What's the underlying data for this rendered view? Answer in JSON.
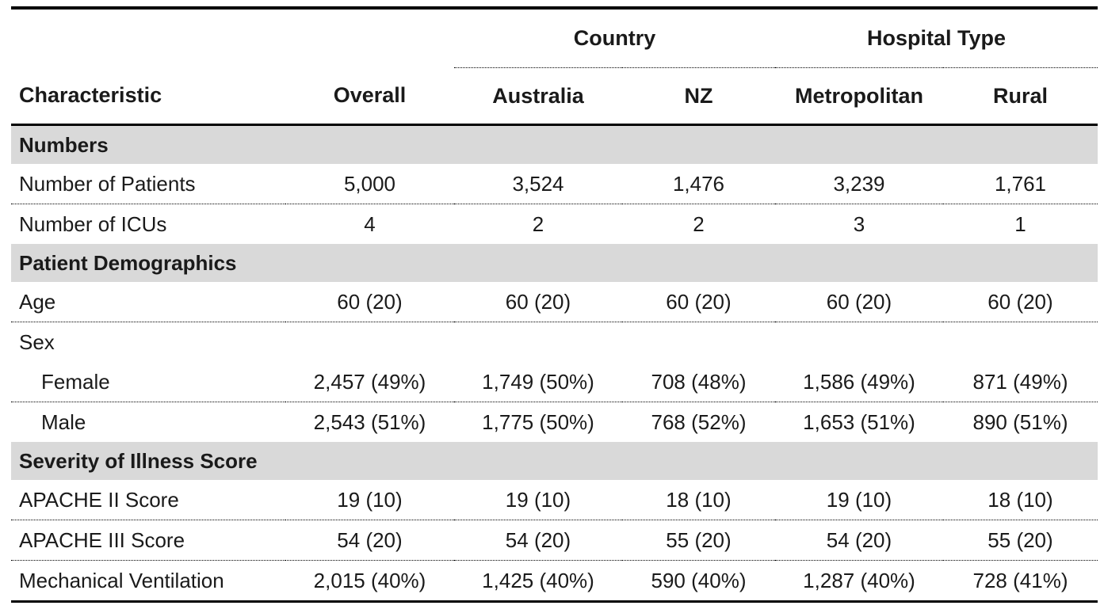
{
  "colors": {
    "section_bg": "#d9d9d9",
    "border": "#000000",
    "text": "#1a1a1a"
  },
  "table": {
    "headers": {
      "characteristic": "Characteristic",
      "overall": "Overall",
      "country_group": "Country",
      "hospital_type_group": "Hospital Type",
      "columns": [
        "Australia",
        "NZ",
        "Metropolitan",
        "Rural"
      ]
    },
    "sections": [
      {
        "title": "Numbers",
        "rows": [
          {
            "label": "Number of Patients",
            "indent": false,
            "divider": true,
            "values": [
              "5,000",
              "3,524",
              "1,476",
              "3,239",
              "1,761"
            ]
          },
          {
            "label": "Number of ICUs",
            "indent": false,
            "divider": false,
            "values": [
              "4",
              "2",
              "2",
              "3",
              "1"
            ]
          }
        ]
      },
      {
        "title": "Patient Demographics",
        "rows": [
          {
            "label": "Age",
            "indent": false,
            "divider": true,
            "values": [
              "60 (20)",
              "60 (20)",
              "60 (20)",
              "60 (20)",
              "60 (20)"
            ]
          },
          {
            "label": "Sex",
            "indent": false,
            "divider": false,
            "values": [
              "",
              "",
              "",
              "",
              ""
            ]
          },
          {
            "label": "Female",
            "indent": true,
            "divider": true,
            "values": [
              "2,457 (49%)",
              "1,749 (50%)",
              "708 (48%)",
              "1,586 (49%)",
              "871 (49%)"
            ]
          },
          {
            "label": "Male",
            "indent": true,
            "divider": false,
            "values": [
              "2,543 (51%)",
              "1,775 (50%)",
              "768 (52%)",
              "1,653 (51%)",
              "890 (51%)"
            ]
          }
        ]
      },
      {
        "title": "Severity of Illness Score",
        "rows": [
          {
            "label": "APACHE II Score",
            "indent": false,
            "divider": true,
            "values": [
              "19 (10)",
              "19 (10)",
              "18 (10)",
              "19 (10)",
              "18 (10)"
            ]
          },
          {
            "label": "APACHE III Score",
            "indent": false,
            "divider": true,
            "values": [
              "54 (20)",
              "54 (20)",
              "55 (20)",
              "54 (20)",
              "55 (20)"
            ]
          },
          {
            "label": "Mechanical Ventilation",
            "indent": false,
            "divider": false,
            "values": [
              "2,015 (40%)",
              "1,425 (40%)",
              "590 (40%)",
              "1,287 (40%)",
              "728 (41%)"
            ]
          }
        ]
      }
    ]
  }
}
